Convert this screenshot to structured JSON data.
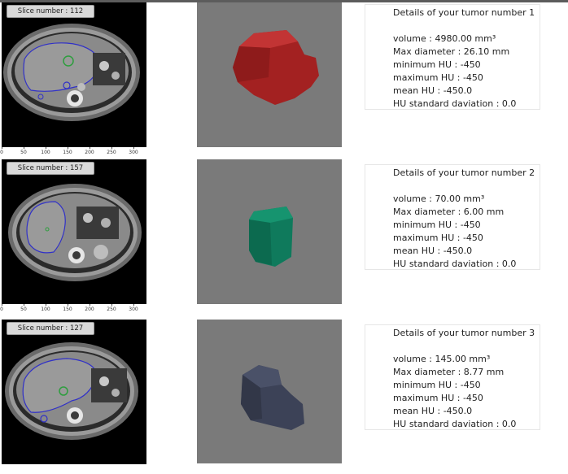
{
  "tumors": [
    {
      "slice_label": "Slice number : 112",
      "title": "Details of your tumor number 1",
      "volume": "volume : 4980.00 mm³",
      "max_diameter": "Max diameter : 26.10 mm",
      "min_hu": "minimum HU : -450",
      "max_hu": "maximum HU : -450",
      "mean_hu": "mean HU : -450.0",
      "hu_std": "HU standard daviation : 0.0",
      "render_color": "#a32121"
    },
    {
      "slice_label": "Slice number : 157",
      "title": "Details of your tumor number 2",
      "volume": "volume : 70.00 mm³",
      "max_diameter": "Max diameter : 6.00 mm",
      "min_hu": "minimum HU : -450",
      "max_hu": "maximum HU : -450",
      "mean_hu": "mean HU : -450.0",
      "hu_std": "HU standard daviation : 0.0",
      "render_color": "#0f7a5c"
    },
    {
      "slice_label": "Slice number : 127",
      "title": "Details of your tumor number 3",
      "volume": "volume : 145.00 mm³",
      "max_diameter": "Max diameter : 8.77 mm",
      "min_hu": "minimum HU : -450",
      "max_hu": "maximum HU : -450",
      "mean_hu": "mean HU : -450.0",
      "hu_std": "HU standard daviation : 0.0",
      "render_color": "#3c4257"
    }
  ],
  "x_axis_ticks": [
    "0",
    "50",
    "100",
    "150",
    "200",
    "250",
    "300"
  ],
  "colors": {
    "liver_contour": "#3030c8",
    "tumor_contour": "#2e9e3e",
    "viewer_background": "#7a7a7a"
  }
}
